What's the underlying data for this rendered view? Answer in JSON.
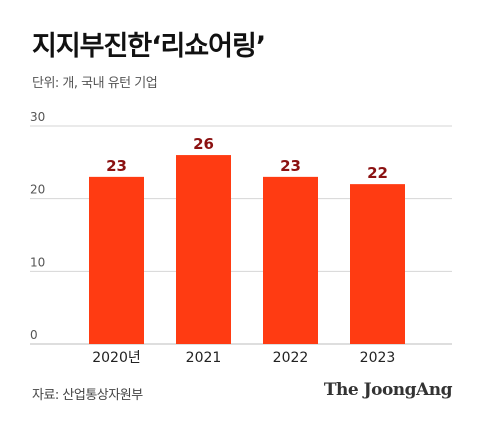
{
  "title": "지지부진한‘리쇼어링’",
  "subtitle": "단위: 개, 국내 유턴 기업",
  "source": "자료: 산업통상자원부",
  "logo": "The JoongAng",
  "colors": {
    "bar": "#FF3B12",
    "value_label": "#8B1111",
    "grid": "#d6d6d6",
    "axis_text": "#555555"
  },
  "chart_data": {
    "type": "bar",
    "categories": [
      "2020년",
      "2021",
      "2022",
      "2023"
    ],
    "values": [
      23,
      26,
      23,
      22
    ],
    "ylim": [
      0,
      30
    ],
    "yticks": [
      0,
      10,
      20,
      30
    ],
    "grid": true,
    "title": "지지부진한‘리쇼어링’",
    "xlabel": "",
    "ylabel": ""
  }
}
